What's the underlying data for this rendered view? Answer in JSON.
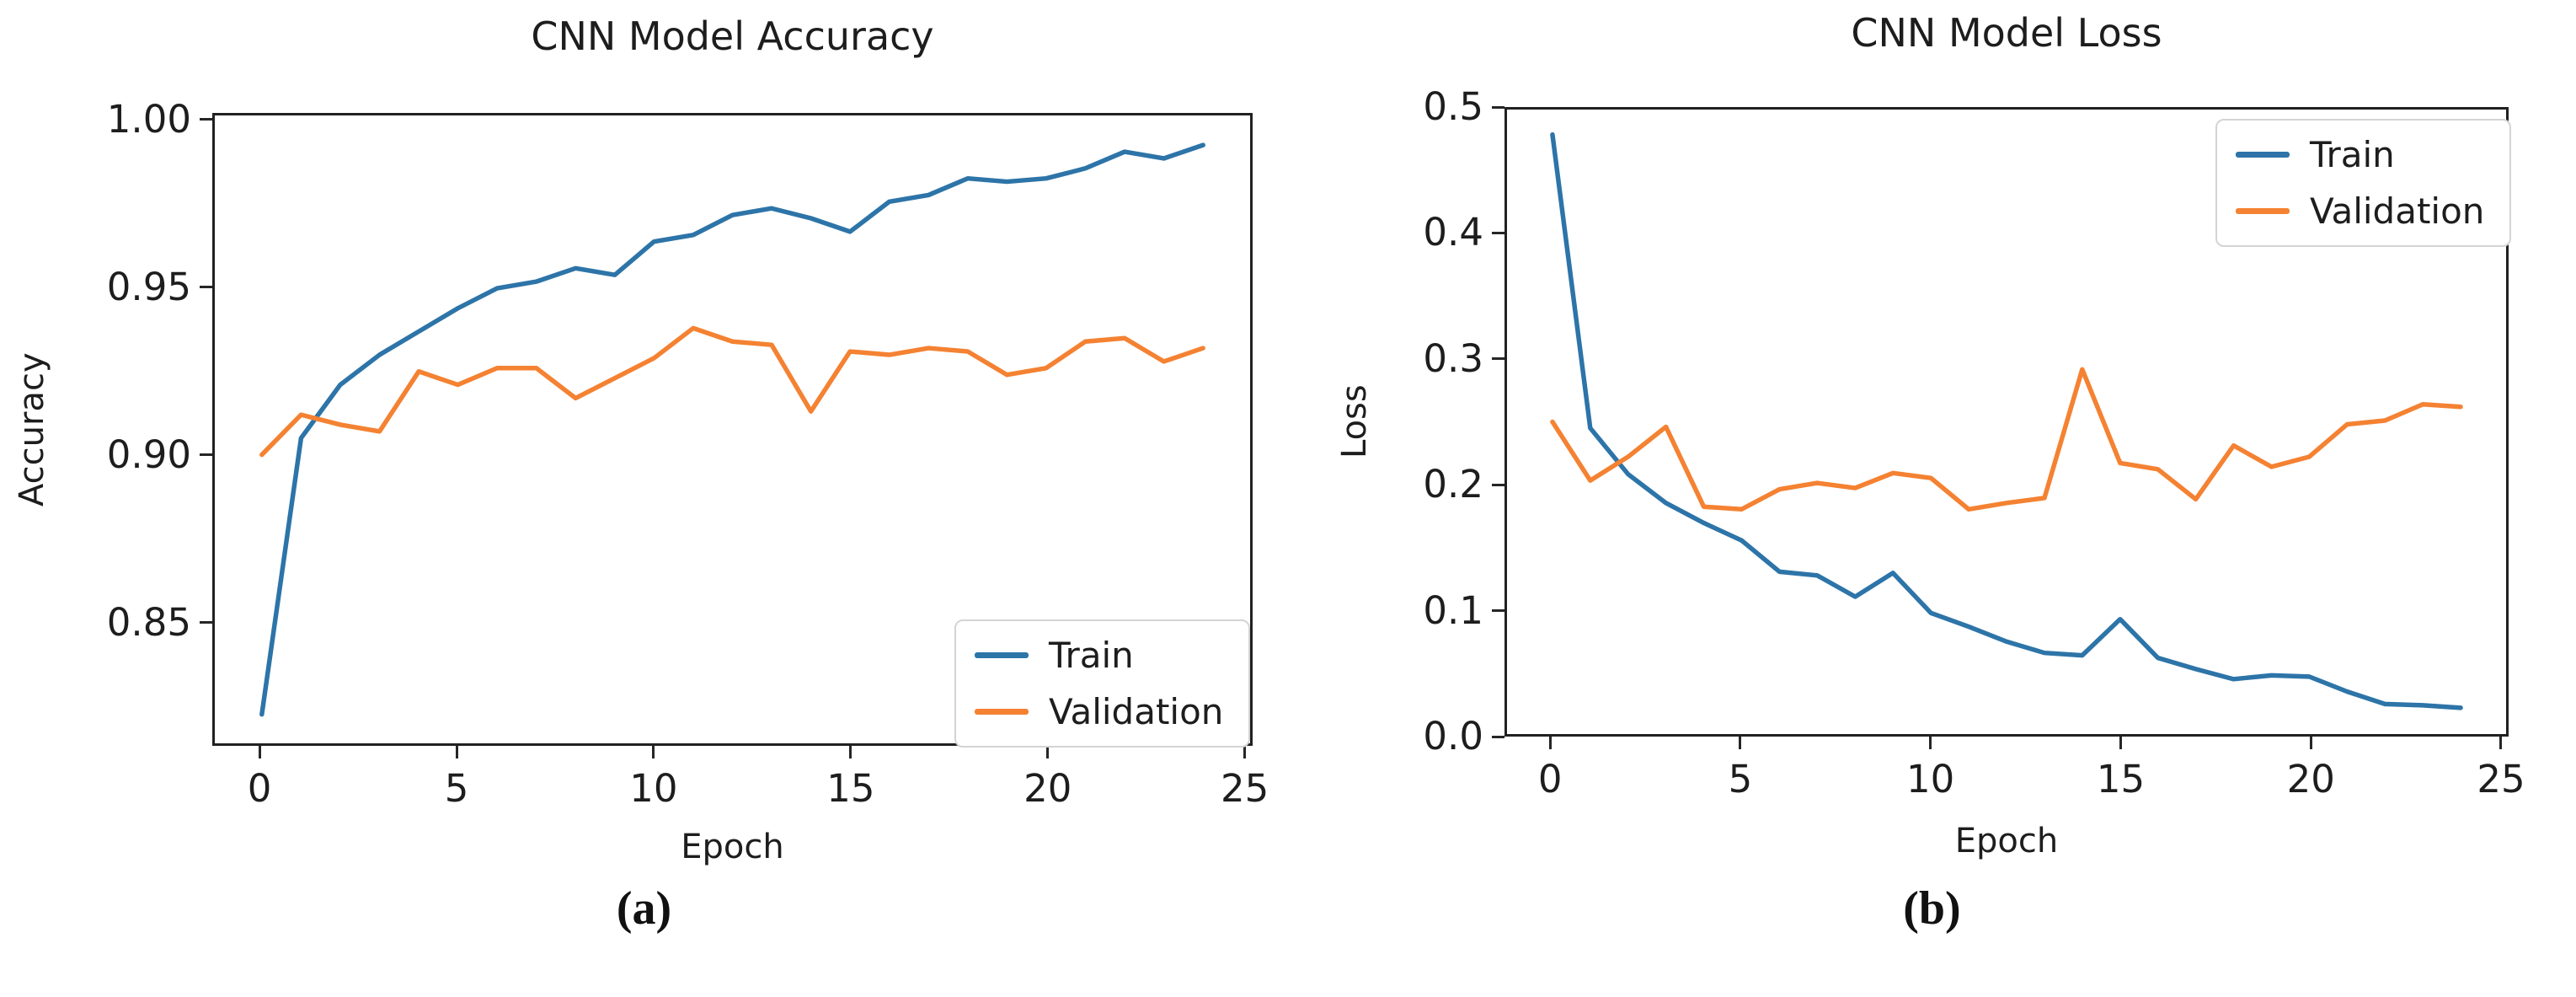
{
  "figure": {
    "background": "#ffffff",
    "text_color": "#1d1d1d",
    "spine_color": "#212121",
    "train_color": "#2d74a8",
    "validation_color": "#f48232"
  },
  "chart_data": [
    {
      "type": "line",
      "title": "CNN Model Accuracy",
      "xlabel": "Epoch",
      "ylabel": "Accuracy",
      "caption": "(a)",
      "grid": false,
      "legend_position": "lower right",
      "xlim": [
        -1.2,
        25.2
      ],
      "ylim": [
        0.8133,
        1.0019
      ],
      "xticks": {
        "values": [
          0,
          5,
          10,
          15,
          20,
          25
        ],
        "labels": [
          "0",
          "5",
          "10",
          "15",
          "20",
          "25"
        ]
      },
      "yticks": {
        "values": [
          1.0,
          0.95,
          0.9,
          0.85
        ],
        "labels": [
          "1.00",
          "0.95",
          "0.90",
          "0.85"
        ]
      },
      "x": [
        0,
        1,
        2,
        3,
        4,
        5,
        6,
        7,
        8,
        9,
        10,
        11,
        12,
        13,
        14,
        15,
        16,
        17,
        18,
        19,
        20,
        21,
        22,
        23,
        24
      ],
      "series": [
        {
          "name": "Train",
          "color": "#2d74a8",
          "values": [
            0.822,
            0.905,
            0.921,
            0.93,
            0.937,
            0.944,
            0.95,
            0.952,
            0.956,
            0.954,
            0.964,
            0.966,
            0.972,
            0.974,
            0.971,
            0.967,
            0.976,
            0.978,
            0.983,
            0.982,
            0.983,
            0.986,
            0.991,
            0.989,
            0.993
          ]
        },
        {
          "name": "Validation",
          "color": "#f48232",
          "values": [
            0.9,
            0.912,
            0.909,
            0.907,
            0.925,
            0.921,
            0.926,
            0.926,
            0.917,
            0.923,
            0.929,
            0.938,
            0.934,
            0.933,
            0.913,
            0.931,
            0.93,
            0.932,
            0.931,
            0.924,
            0.926,
            0.934,
            0.935,
            0.928,
            0.932
          ]
        }
      ]
    },
    {
      "type": "line",
      "title": "CNN Model Loss",
      "xlabel": "Epoch",
      "ylabel": "Loss",
      "caption": "(b)",
      "grid": false,
      "legend_position": "upper right",
      "xlim": [
        -1.2,
        25.2
      ],
      "ylim": [
        0.0,
        0.5
      ],
      "xticks": {
        "values": [
          0,
          5,
          10,
          15,
          20,
          25
        ],
        "labels": [
          "0",
          "5",
          "10",
          "15",
          "20",
          "25"
        ]
      },
      "yticks": {
        "values": [
          0.5,
          0.4,
          0.3,
          0.2,
          0.1,
          0.0
        ],
        "labels": [
          "0.5",
          "0.4",
          "0.3",
          "0.2",
          "0.1",
          "0.0"
        ]
      },
      "x": [
        0,
        1,
        2,
        3,
        4,
        5,
        6,
        7,
        8,
        9,
        10,
        11,
        12,
        13,
        14,
        15,
        16,
        17,
        18,
        19,
        20,
        21,
        22,
        23,
        24
      ],
      "series": [
        {
          "name": "Train",
          "color": "#2d74a8",
          "values": [
            0.48,
            0.245,
            0.208,
            0.185,
            0.169,
            0.155,
            0.13,
            0.127,
            0.11,
            0.129,
            0.097,
            0.086,
            0.074,
            0.065,
            0.063,
            0.092,
            0.061,
            0.052,
            0.044,
            0.047,
            0.046,
            0.034,
            0.024,
            0.023,
            0.021
          ]
        },
        {
          "name": "Validation",
          "color": "#f48232",
          "values": [
            0.25,
            0.203,
            0.222,
            0.246,
            0.182,
            0.18,
            0.196,
            0.201,
            0.197,
            0.209,
            0.205,
            0.18,
            0.185,
            0.189,
            0.292,
            0.217,
            0.212,
            0.188,
            0.231,
            0.214,
            0.222,
            0.248,
            0.251,
            0.264,
            0.262
          ]
        }
      ]
    }
  ]
}
